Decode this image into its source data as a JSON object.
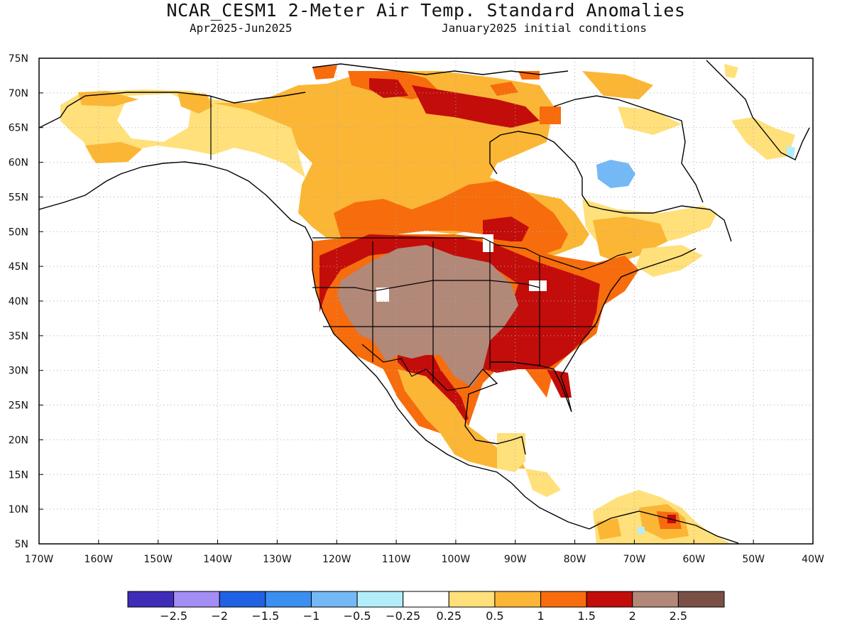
{
  "header": {
    "title": "NCAR_CESM1 2-Meter Air Temp. Standard Anomalies",
    "period": "Apr2025-Jun2025",
    "init": "January2025 initial conditions"
  },
  "map": {
    "lat_labels": [
      "75N",
      "70N",
      "65N",
      "60N",
      "55N",
      "50N",
      "45N",
      "40N",
      "35N",
      "30N",
      "25N",
      "20N",
      "15N",
      "10N",
      "5N"
    ],
    "lon_labels": [
      "170W",
      "160W",
      "150W",
      "140W",
      "130W",
      "120W",
      "110W",
      "100W",
      "90W",
      "80W",
      "70W",
      "60W",
      "50W",
      "40W"
    ],
    "lat_range": [
      5,
      75
    ],
    "lon_range": [
      -170,
      -40
    ]
  },
  "colorbar": {
    "colors": [
      "#3f2db8",
      "#a48df5",
      "#1f62e4",
      "#3a8ff0",
      "#74b8f5",
      "#b2eefa",
      "#ffffff",
      "#ffe07a",
      "#fbb635",
      "#f76c0c",
      "#c20d0a",
      "#b28878",
      "#7a5046"
    ],
    "labels": [
      "-2.5",
      "-2",
      "-1.5",
      "-1",
      "-0.5",
      "-0.25",
      "0.25",
      "0.5",
      "1",
      "1.5",
      "2",
      "2.5"
    ]
  }
}
